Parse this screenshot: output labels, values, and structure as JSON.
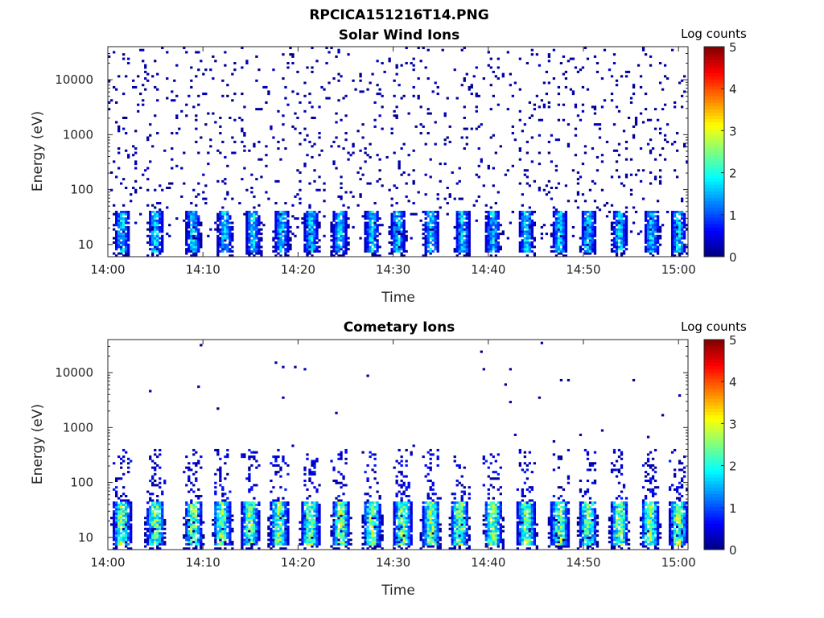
{
  "figure": {
    "title": "RPCICA151216T14.PNG"
  },
  "chart_data": [
    {
      "type": "heatmap",
      "title": "Solar Wind Ions",
      "xlabel": "Time",
      "ylabel": "Energy (eV)",
      "x_ticks": [
        "14:00",
        "14:10",
        "14:20",
        "14:30",
        "14:40",
        "14:50",
        "15:00"
      ],
      "xlim": [
        "14:00",
        "15:01"
      ],
      "y_scale": "log",
      "y_ticks": [
        "10",
        "100",
        "1000",
        "10000"
      ],
      "ylim": [
        6,
        40000
      ],
      "colorbar": {
        "label": "Log counts",
        "ticks": [
          "0",
          "1",
          "2",
          "3",
          "4",
          "5"
        ],
        "range": [
          0,
          5
        ],
        "colormap": "jet"
      },
      "hot_time_minutes": [
        1.5,
        5.0,
        9.0,
        12.3,
        15.3,
        18.3,
        21.4,
        24.4,
        27.8,
        30.5,
        34.0,
        37.3,
        40.5,
        44.0,
        47.5,
        50.5,
        53.8,
        57.2,
        60.0
      ],
      "hot_energy_band_eV": [
        10,
        40
      ],
      "hot_peak_log_counts": 2.0,
      "background": "sparse single counts (log 0-0.5) from ~10 eV to ~20000 eV"
    },
    {
      "type": "heatmap",
      "title": "Cometary Ions",
      "xlabel": "Time",
      "ylabel": "Energy (eV)",
      "x_ticks": [
        "14:00",
        "14:10",
        "14:20",
        "14:30",
        "14:40",
        "14:50",
        "15:00"
      ],
      "xlim": [
        "14:00",
        "15:01"
      ],
      "y_scale": "log",
      "y_ticks": [
        "10",
        "100",
        "1000",
        "10000"
      ],
      "ylim": [
        6,
        40000
      ],
      "colorbar": {
        "label": "Log counts",
        "ticks": [
          "0",
          "1",
          "2",
          "3",
          "4",
          "5"
        ],
        "range": [
          0,
          5
        ],
        "colormap": "jet"
      },
      "hot_time_minutes": [
        1.5,
        5.0,
        9.0,
        12.0,
        15.0,
        18.0,
        21.3,
        24.5,
        27.8,
        31.0,
        34.0,
        37.0,
        40.5,
        44.0,
        47.5,
        50.5,
        53.8,
        57.0,
        60.0
      ],
      "hot_energy_band_eV": [
        10,
        45
      ],
      "hot_peak_log_counts": 3.0,
      "background": "sparse counts mainly below 300 eV, occasional spikes up to ~10000 eV"
    }
  ]
}
